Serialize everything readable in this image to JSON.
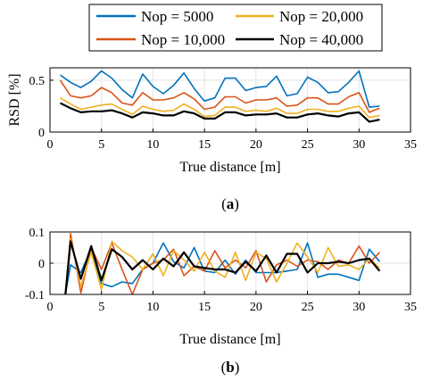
{
  "chart_data": [
    {
      "type": "line",
      "panel_label": {
        "open": "(",
        "letter": "a",
        "close": ")"
      },
      "xlabel": "True distance [m]",
      "ylabel": "RSD [%]",
      "xlim": [
        0,
        35
      ],
      "ylim": [
        0,
        0.62
      ],
      "xticks": [
        0,
        5,
        10,
        15,
        20,
        25,
        30,
        35
      ],
      "yticks": [
        0,
        0.5
      ],
      "grid": true,
      "legend": {
        "placement": "top",
        "entries": [
          "Nop = 5000",
          "Nop = 20,000",
          "Nop = 10,000",
          "Nop = 40,000"
        ]
      },
      "x": [
        1,
        2,
        3,
        4,
        5,
        6,
        7,
        8,
        9,
        10,
        11,
        12,
        13,
        14,
        15,
        16,
        17,
        18,
        19,
        20,
        21,
        22,
        23,
        24,
        25,
        26,
        27,
        28,
        29,
        30,
        31,
        32
      ],
      "series": [
        {
          "name": "Nop = 5000",
          "color": "#0072BD",
          "values": [
            0.55,
            0.48,
            0.43,
            0.49,
            0.59,
            0.52,
            0.41,
            0.33,
            0.56,
            0.44,
            0.37,
            0.45,
            0.57,
            0.42,
            0.3,
            0.33,
            0.52,
            0.52,
            0.4,
            0.43,
            0.44,
            0.54,
            0.35,
            0.37,
            0.53,
            0.48,
            0.38,
            0.39,
            0.48,
            0.59,
            0.24,
            0.25
          ]
        },
        {
          "name": "Nop = 10,000",
          "color": "#D95319",
          "values": [
            0.5,
            0.35,
            0.33,
            0.35,
            0.43,
            0.38,
            0.28,
            0.26,
            0.38,
            0.31,
            0.31,
            0.33,
            0.38,
            0.32,
            0.22,
            0.24,
            0.34,
            0.34,
            0.28,
            0.31,
            0.31,
            0.33,
            0.25,
            0.26,
            0.33,
            0.33,
            0.27,
            0.27,
            0.34,
            0.38,
            0.19,
            0.23
          ]
        },
        {
          "name": "Nop = 20,000",
          "color": "#EDB120",
          "values": [
            0.33,
            0.27,
            0.22,
            0.24,
            0.26,
            0.27,
            0.22,
            0.17,
            0.25,
            0.22,
            0.2,
            0.21,
            0.27,
            0.22,
            0.15,
            0.16,
            0.24,
            0.24,
            0.2,
            0.21,
            0.2,
            0.23,
            0.18,
            0.18,
            0.22,
            0.22,
            0.2,
            0.2,
            0.23,
            0.25,
            0.14,
            0.16
          ]
        },
        {
          "name": "Nop = 40,000",
          "color": "#000000",
          "values": [
            0.28,
            0.23,
            0.19,
            0.2,
            0.2,
            0.21,
            0.18,
            0.14,
            0.19,
            0.18,
            0.16,
            0.16,
            0.2,
            0.18,
            0.13,
            0.13,
            0.19,
            0.19,
            0.16,
            0.17,
            0.17,
            0.18,
            0.14,
            0.14,
            0.17,
            0.18,
            0.16,
            0.15,
            0.18,
            0.19,
            0.1,
            0.12
          ]
        }
      ]
    },
    {
      "type": "line",
      "panel_label": {
        "open": "(",
        "letter": "b",
        "close": ")"
      },
      "xlabel": "True distance [m]",
      "ylabel": "",
      "xlim": [
        0,
        35
      ],
      "ylim": [
        -0.1,
        0.1
      ],
      "xticks": [
        0,
        5,
        10,
        15,
        20,
        25,
        30,
        35
      ],
      "yticks": [
        -0.1,
        0,
        0.1
      ],
      "ytick_labels": [
        "-0.1",
        "0",
        "0.1"
      ],
      "grid": true,
      "x": [
        1.5,
        2,
        3,
        4,
        5,
        6,
        7,
        8,
        9,
        10,
        11,
        12,
        13,
        14,
        15,
        16,
        17,
        18,
        19,
        20,
        21,
        22,
        23,
        24,
        25,
        26,
        27,
        28,
        29,
        30,
        31,
        32
      ],
      "series": [
        {
          "name": "Nop = 5000",
          "color": "#0072BD",
          "values": [
            -0.1,
            -0.005,
            -0.03,
            0.045,
            -0.065,
            -0.075,
            -0.06,
            -0.065,
            -0.02,
            0.0,
            0.065,
            0.005,
            -0.015,
            0.05,
            -0.025,
            -0.03,
            0.01,
            -0.035,
            0.01,
            -0.03,
            -0.03,
            -0.03,
            -0.025,
            -0.02,
            0.065,
            -0.045,
            -0.035,
            -0.035,
            -0.045,
            -0.055,
            0.045,
            0.005
          ]
        },
        {
          "name": "Nop = 10,000",
          "color": "#D95319",
          "values": [
            -0.1,
            0.095,
            -0.095,
            0.05,
            -0.02,
            0.065,
            -0.02,
            -0.1,
            -0.02,
            0.0,
            0.01,
            0.045,
            -0.04,
            -0.01,
            -0.025,
            0.04,
            -0.015,
            0.01,
            -0.015,
            0.04,
            -0.06,
            -0.005,
            0.01,
            -0.01,
            0.01,
            0.005,
            -0.02,
            0.01,
            0.0,
            0.055,
            0.0,
            0.035
          ]
        },
        {
          "name": "Nop = 20,000",
          "color": "#EDB120",
          "values": [
            -0.1,
            0.08,
            -0.075,
            0.035,
            -0.085,
            0.07,
            0.04,
            0.02,
            -0.02,
            0.03,
            -0.04,
            0.04,
            0.01,
            -0.025,
            0.035,
            -0.025,
            -0.045,
            0.035,
            -0.055,
            0.035,
            0.015,
            -0.06,
            0.0,
            0.065,
            0.02,
            -0.03,
            0.05,
            -0.01,
            -0.005,
            -0.02,
            0.015,
            -0.015
          ]
        },
        {
          "name": "Nop = 40,000",
          "color": "#000000",
          "values": [
            -0.1,
            0.07,
            -0.05,
            0.055,
            -0.055,
            0.045,
            0.02,
            -0.02,
            0.01,
            -0.02,
            0.015,
            -0.01,
            0.035,
            -0.01,
            -0.015,
            -0.02,
            -0.02,
            -0.03,
            0.005,
            -0.025,
            0.025,
            -0.03,
            0.03,
            0.03,
            -0.03,
            0.0,
            0.0,
            0.005,
            0.0,
            0.01,
            0.015,
            -0.025
          ]
        }
      ]
    }
  ]
}
